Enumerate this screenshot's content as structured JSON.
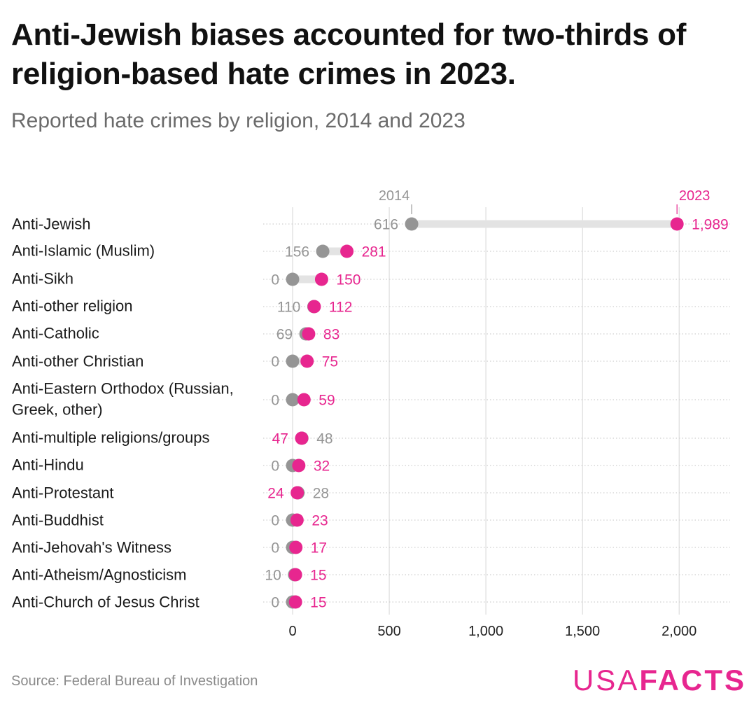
{
  "title": "Anti-Jewish biases accounted for two-thirds of religion-based hate crimes in 2023.",
  "subtitle": "Reported hate crimes by religion, 2014 and 2023",
  "source": "Source: Federal Bureau of Investigation",
  "logo": {
    "usa": "USA",
    "facts": "FACTS"
  },
  "colors": {
    "y2014": "#959595",
    "y2023": "#e7268f",
    "connector": "#e3e3e3",
    "grid": "#d6d6d6"
  },
  "chart_data": {
    "type": "dot-range",
    "xlim": [
      0,
      2250
    ],
    "xticks": [
      0,
      500,
      1000,
      1500,
      2000
    ],
    "xtick_labels": [
      "0",
      "500",
      "1,000",
      "1,500",
      "2,000"
    ],
    "series": [
      {
        "name": "2014",
        "key": "v2014"
      },
      {
        "name": "2023",
        "key": "v2023"
      }
    ],
    "rows": [
      {
        "category": [
          "Anti-Jewish"
        ],
        "v2014": 616,
        "v2023": 1989,
        "label2014": "616",
        "label2023": "1,989"
      },
      {
        "category": [
          "Anti-Islamic (Muslim)"
        ],
        "v2014": 156,
        "v2023": 281,
        "label2014": "156",
        "label2023": "281"
      },
      {
        "category": [
          "Anti-Sikh"
        ],
        "v2014": 0,
        "v2023": 150,
        "label2014": "0",
        "label2023": "150"
      },
      {
        "category": [
          "Anti-other religion"
        ],
        "v2014": 110,
        "v2023": 112,
        "label2014": "110",
        "label2023": "112"
      },
      {
        "category": [
          "Anti-Catholic"
        ],
        "v2014": 69,
        "v2023": 83,
        "label2014": "69",
        "label2023": "83"
      },
      {
        "category": [
          "Anti-other Christian"
        ],
        "v2014": 0,
        "v2023": 75,
        "label2014": "0",
        "label2023": "75"
      },
      {
        "category": [
          "Anti-Eastern Orthodox (Russian,",
          "Greek, other)"
        ],
        "v2014": 0,
        "v2023": 59,
        "label2014": "0",
        "label2023": "59"
      },
      {
        "category": [
          "Anti-multiple religions/groups"
        ],
        "v2014": 48,
        "v2023": 47,
        "label2014": "48",
        "label2023": "47"
      },
      {
        "category": [
          "Anti-Hindu"
        ],
        "v2014": 0,
        "v2023": 32,
        "label2014": "0",
        "label2023": "32"
      },
      {
        "category": [
          "Anti-Protestant"
        ],
        "v2014": 28,
        "v2023": 24,
        "label2014": "28",
        "label2023": "24"
      },
      {
        "category": [
          "Anti-Buddhist"
        ],
        "v2014": 0,
        "v2023": 23,
        "label2014": "0",
        "label2023": "23"
      },
      {
        "category": [
          "Anti-Jehovah's Witness"
        ],
        "v2014": 0,
        "v2023": 17,
        "label2014": "0",
        "label2023": "17"
      },
      {
        "category": [
          "Anti-Atheism/Agnosticism"
        ],
        "v2014": 10,
        "v2023": 15,
        "label2014": "10",
        "label2023": "15"
      },
      {
        "category": [
          "Anti-Church of Jesus Christ"
        ],
        "v2014": 0,
        "v2023": 15,
        "label2014": "0",
        "label2023": "15"
      }
    ]
  }
}
